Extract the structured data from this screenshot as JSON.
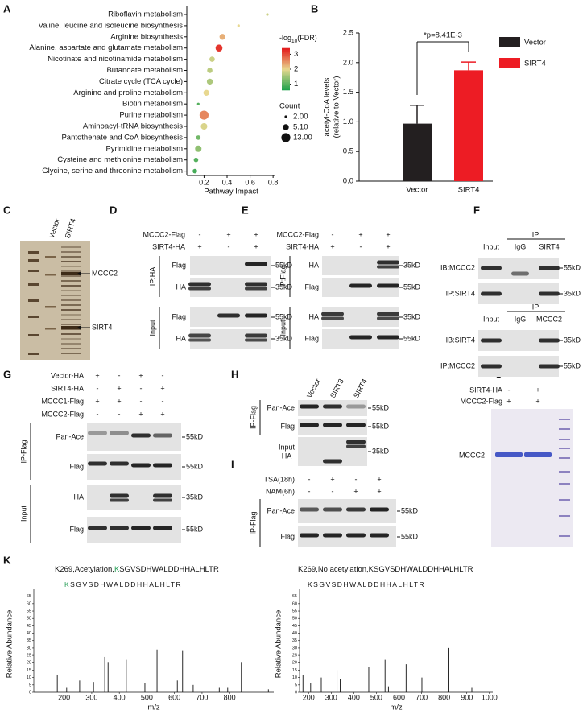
{
  "panel_labels": [
    "A",
    "B",
    "C",
    "D",
    "E",
    "F",
    "G",
    "H",
    "I",
    "J",
    "K"
  ],
  "chart_data": [
    {
      "type": "dot",
      "categories": [
        "Riboflavin metabolism",
        "Valine, leucine and isoleucine biosynthesis",
        "Arginine biosynthesis",
        "Alanine, aspartate and glutamate metabolism",
        "Nicotinate and nicotinamide metabolism",
        "Butanoate metabolism",
        "Citrate cycle (TCA cycle)",
        "Arginine and proline metabolism",
        "Biotin metabolism",
        "Purine metabolism",
        "Aminoacyl-tRNA biosynthesis",
        "Pantothenate and CoA biosynthesis",
        "Pyrimidine metabolism",
        "Cysteine and methionine metabolism",
        "Glycine, serine and threonine metabolism"
      ],
      "values": [
        0.75,
        0.5,
        0.36,
        0.33,
        0.27,
        0.25,
        0.25,
        0.22,
        0.15,
        0.2,
        0.2,
        0.15,
        0.15,
        0.13,
        0.12
      ],
      "count": [
        2,
        2,
        5,
        7,
        4,
        4,
        5,
        5,
        2,
        13,
        6,
        3,
        6,
        3,
        3
      ],
      "fdr": [
        1.8,
        2.0,
        2.3,
        3.2,
        1.8,
        1.7,
        1.6,
        2.0,
        1.0,
        2.6,
        1.9,
        1.2,
        1.4,
        1.0,
        0.9
      ],
      "x_label": "Pathway Impact",
      "xlim": [
        0.05,
        0.82
      ],
      "xticks": [
        0.2,
        0.4,
        0.6,
        0.8
      ],
      "color_legend": {
        "title": [
          "-log",
          "10",
          "(FDR)"
        ],
        "ticks": [
          1,
          2,
          3
        ],
        "clim": [
          0.6,
          3.4
        ],
        "colors": [
          "#1aa04a",
          "#e8d890",
          "#e31a1c"
        ]
      },
      "size_legend": {
        "title": "Count",
        "ticks": [
          {
            "value": 2,
            "label": "2.00"
          },
          {
            "value": 5.1,
            "label": "5.10"
          },
          {
            "value": 13,
            "label": "13.00"
          }
        ]
      }
    },
    {
      "type": "bar",
      "categories": [
        "Vector",
        "SIRT4"
      ],
      "values": [
        0.97,
        1.87
      ],
      "errors": [
        0.31,
        0.14
      ],
      "colors": [
        "#231f20",
        "#ed1c24"
      ],
      "y_label": [
        "acetyl-CoA levels",
        "(relative to Vector)"
      ],
      "ylim": [
        0,
        2.5
      ],
      "yticks": [
        {
          "value": 0,
          "label": "0.0"
        },
        0.5,
        {
          "value": 1,
          "label": "1.0"
        },
        1.5,
        {
          "value": 2,
          "label": "2.0"
        },
        2.5
      ],
      "annotation": "*p=8.41E-3",
      "legend": true
    },
    {
      "type": "spectrum",
      "title": {
        "text": "K269,Acetylation,",
        "site": "K",
        "rest": "SGVSDHWALDDHHALHLTR"
      },
      "site_color": "#2aa05a",
      "sequence": {
        "site": "K",
        "rest": "SGVSDHWALDDHHALHLTR"
      },
      "y_label": "Relative Abundance",
      "x_label": "m/z",
      "x": [
        175.12,
        209.11,
        256.17,
        306.48,
        347.2,
        359.2,
        425.25,
        468.12,
        492.78,
        536.81,
        610.32,
        629.4,
        667.82,
        710.44,
        762.37,
        792.93,
        842.48,
        940.41
      ],
      "values": [
        12,
        3,
        8,
        7,
        24,
        20,
        22,
        5,
        6,
        29,
        8,
        28,
        5,
        27,
        3,
        3,
        20,
        2
      ],
      "xlim": [
        90,
        960
      ],
      "xticks": [
        200,
        300,
        400,
        500,
        600,
        700,
        800
      ],
      "ylim": [
        0,
        67
      ],
      "yticks": [
        0,
        5,
        10,
        15,
        20,
        25,
        30,
        35,
        40,
        45,
        50,
        55,
        60,
        65
      ]
    },
    {
      "type": "spectrum",
      "title": {
        "text": "K269,No acetylation,KSGVSDHWALDDHHALHLTR"
      },
      "sequence": {
        "rest": "KSGVSDHWALDDHHALHLTR"
      },
      "y_label": "Relative Abundance",
      "x_label": "m/z",
      "x": [
        175.12,
        209.19,
        256.17,
        325.95,
        340.13,
        436.29,
        466.28,
        538.31,
        553.27,
        631.39,
        701.41,
        710.43,
        817.36,
        922.36
      ],
      "values": [
        12,
        6,
        10,
        15,
        9,
        12,
        17,
        22,
        4,
        19,
        10,
        27,
        30,
        3
      ],
      "xlim": [
        160,
        1015
      ],
      "xticks": [
        200,
        300,
        400,
        500,
        600,
        700,
        800,
        900,
        1000
      ],
      "ylim": [
        0,
        67
      ],
      "yticks": [
        0,
        5,
        10,
        15,
        20,
        25,
        30,
        35,
        40,
        45,
        50,
        55,
        60,
        65
      ]
    }
  ],
  "C": {
    "lanes": [
      "Vector",
      "SIRT4"
    ],
    "arrows": [
      "MCCC2",
      "SIRT4"
    ]
  },
  "D": {
    "conditions": [
      {
        "name": "MCCC2-Flag",
        "marks": [
          "-",
          "+",
          "+"
        ]
      },
      {
        "name": "SIRT4-HA",
        "marks": [
          "+",
          "-",
          "+"
        ]
      }
    ],
    "groups": [
      "IP:HA",
      "Input"
    ],
    "rows": [
      {
        "label": "Flag",
        "size": "55kD"
      },
      {
        "label": "HA",
        "size": "35kD"
      },
      {
        "label": "Flag",
        "size": "55kD"
      },
      {
        "label": "HA",
        "size": "35kD"
      }
    ]
  },
  "E": {
    "conditions": [
      {
        "name": "MCCC2-Flag",
        "marks": [
          "-",
          "+",
          "+"
        ]
      },
      {
        "name": "SIRT4-HA",
        "marks": [
          "+",
          "-",
          "+"
        ]
      }
    ],
    "groups": [
      "IP:Flag",
      "Input"
    ],
    "rows": [
      {
        "label": "HA",
        "size": "35kD"
      },
      {
        "label": "Flag",
        "size": "55kD"
      },
      {
        "label": "HA",
        "size": "35kD"
      },
      {
        "label": "Flag",
        "size": "55kD"
      }
    ]
  },
  "F": {
    "blocks": [
      {
        "header": "IP",
        "columns": [
          "Input",
          "IgG",
          "SIRT4"
        ],
        "rows": [
          {
            "label": "IB:MCCC2",
            "size": "55kD"
          },
          {
            "label": "IP:SIRT4",
            "size": "35kD"
          }
        ]
      },
      {
        "header": "IP",
        "columns": [
          "Input",
          "IgG",
          "MCCC2"
        ],
        "rows": [
          {
            "label": "IB:SIRT4",
            "size": "35kD"
          },
          {
            "label": "IP:MCCC2",
            "size": "55kD"
          }
        ]
      }
    ]
  },
  "G": {
    "conditions": [
      {
        "name": "Vector-HA",
        "marks": [
          "+",
          "-",
          "+",
          "-"
        ]
      },
      {
        "name": "SIRT4-HA",
        "marks": [
          "-",
          "+",
          "-",
          "+"
        ]
      },
      {
        "name": "MCCC1-Flag",
        "marks": [
          "+",
          "+",
          "-",
          "-"
        ]
      },
      {
        "name": "MCCC2-Flag",
        "marks": [
          "-",
          "-",
          "+",
          "+"
        ]
      }
    ],
    "groups": [
      "IP-Flag",
      "Input"
    ],
    "rows": [
      {
        "label": "Pan-Ace",
        "size": "55kD"
      },
      {
        "label": "Flag",
        "size": "55kD"
      },
      {
        "label": "HA",
        "size": "35kD"
      },
      {
        "label": "Flag",
        "size": "55kD"
      }
    ]
  },
  "H": {
    "lanes": [
      "Vector",
      "SIRT3",
      "SIRT4"
    ],
    "groups": [
      "IP-Flag"
    ],
    "rows": [
      {
        "label": "Pan-Ace",
        "size": "55kD"
      },
      {
        "label": "Flag",
        "size": "55kD"
      },
      {
        "label": [
          "Input",
          "HA"
        ],
        "size": "35kD"
      }
    ]
  },
  "I": {
    "conditions": [
      {
        "name": "TSA(18h)",
        "marks": [
          "-",
          "+",
          "-",
          "+"
        ]
      },
      {
        "name": "NAM(6h)",
        "marks": [
          "-",
          "-",
          "+",
          "+"
        ]
      }
    ],
    "groups": [
      "IP-Flag"
    ],
    "rows": [
      {
        "label": "Pan-Ace",
        "size": "55kD"
      },
      {
        "label": "Flag",
        "size": "55kD"
      }
    ]
  },
  "J": {
    "conditions": [
      {
        "name": "SIRT4-HA",
        "marks": [
          "-",
          "+"
        ]
      },
      {
        "name": "MCCC2-Flag",
        "marks": [
          "+",
          "+"
        ]
      }
    ],
    "band_label": "MCCC2"
  }
}
